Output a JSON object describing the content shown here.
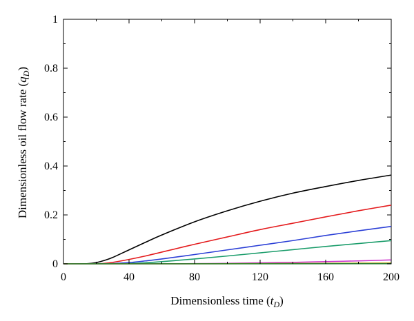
{
  "chart_data": {
    "type": "line",
    "title": "",
    "xlabel": "Dimensionless time",
    "xlabel_var": "t",
    "xlabel_sub": "D",
    "ylabel": "Dimensionless oil flow rate",
    "ylabel_var": "q",
    "ylabel_sub": "D",
    "xlim": [
      0,
      200
    ],
    "ylim": [
      0,
      1
    ],
    "xticks": [
      0,
      40,
      80,
      120,
      160,
      200
    ],
    "yticks": [
      0,
      0.2,
      0.4,
      0.6,
      0.8,
      1
    ],
    "ytick_labels": [
      "0",
      "0.2",
      "0.4",
      "0.6",
      "0.8",
      "1"
    ],
    "grid": false,
    "series": [
      {
        "color": "#000000",
        "x": [
          0,
          10,
          15,
          20,
          25,
          30,
          40,
          50,
          60,
          80,
          100,
          120,
          140,
          160,
          180,
          200
        ],
        "y": [
          0,
          0,
          0.001,
          0.005,
          0.014,
          0.026,
          0.057,
          0.088,
          0.118,
          0.172,
          0.217,
          0.256,
          0.289,
          0.316,
          0.341,
          0.363
        ]
      },
      {
        "color": "#e41a1c",
        "x": [
          0,
          20,
          25,
          30,
          40,
          50,
          60,
          80,
          100,
          120,
          140,
          160,
          180,
          200
        ],
        "y": [
          0,
          0,
          0.002,
          0.006,
          0.018,
          0.032,
          0.048,
          0.08,
          0.11,
          0.14,
          0.166,
          0.192,
          0.217,
          0.24
        ]
      },
      {
        "color": "#2b3fd6",
        "x": [
          0,
          25,
          30,
          40,
          50,
          60,
          80,
          100,
          120,
          140,
          160,
          180,
          200
        ],
        "y": [
          0,
          0,
          0.001,
          0.005,
          0.012,
          0.02,
          0.038,
          0.057,
          0.076,
          0.095,
          0.116,
          0.135,
          0.153
        ]
      },
      {
        "color": "#1a9c6a",
        "x": [
          0,
          35,
          40,
          50,
          60,
          80,
          100,
          120,
          140,
          160,
          180,
          200
        ],
        "y": [
          0,
          0,
          0.001,
          0.004,
          0.009,
          0.02,
          0.032,
          0.045,
          0.058,
          0.071,
          0.083,
          0.095
        ]
      },
      {
        "color": "#cc33cc",
        "x": [
          0,
          60,
          80,
          100,
          120,
          140,
          160,
          180,
          200
        ],
        "y": [
          0,
          0,
          0.001,
          0.002,
          0.004,
          0.006,
          0.009,
          0.012,
          0.016
        ]
      },
      {
        "color": "#b8a000",
        "x": [
          0,
          80,
          100,
          120,
          140,
          160,
          180,
          200
        ],
        "y": [
          0,
          0,
          0.0005,
          0.001,
          0.0015,
          0.002,
          0.0025,
          0.003
        ]
      },
      {
        "color": "#2e7d32",
        "x": [
          0,
          200
        ],
        "y": [
          0,
          0.0005
        ]
      }
    ]
  }
}
